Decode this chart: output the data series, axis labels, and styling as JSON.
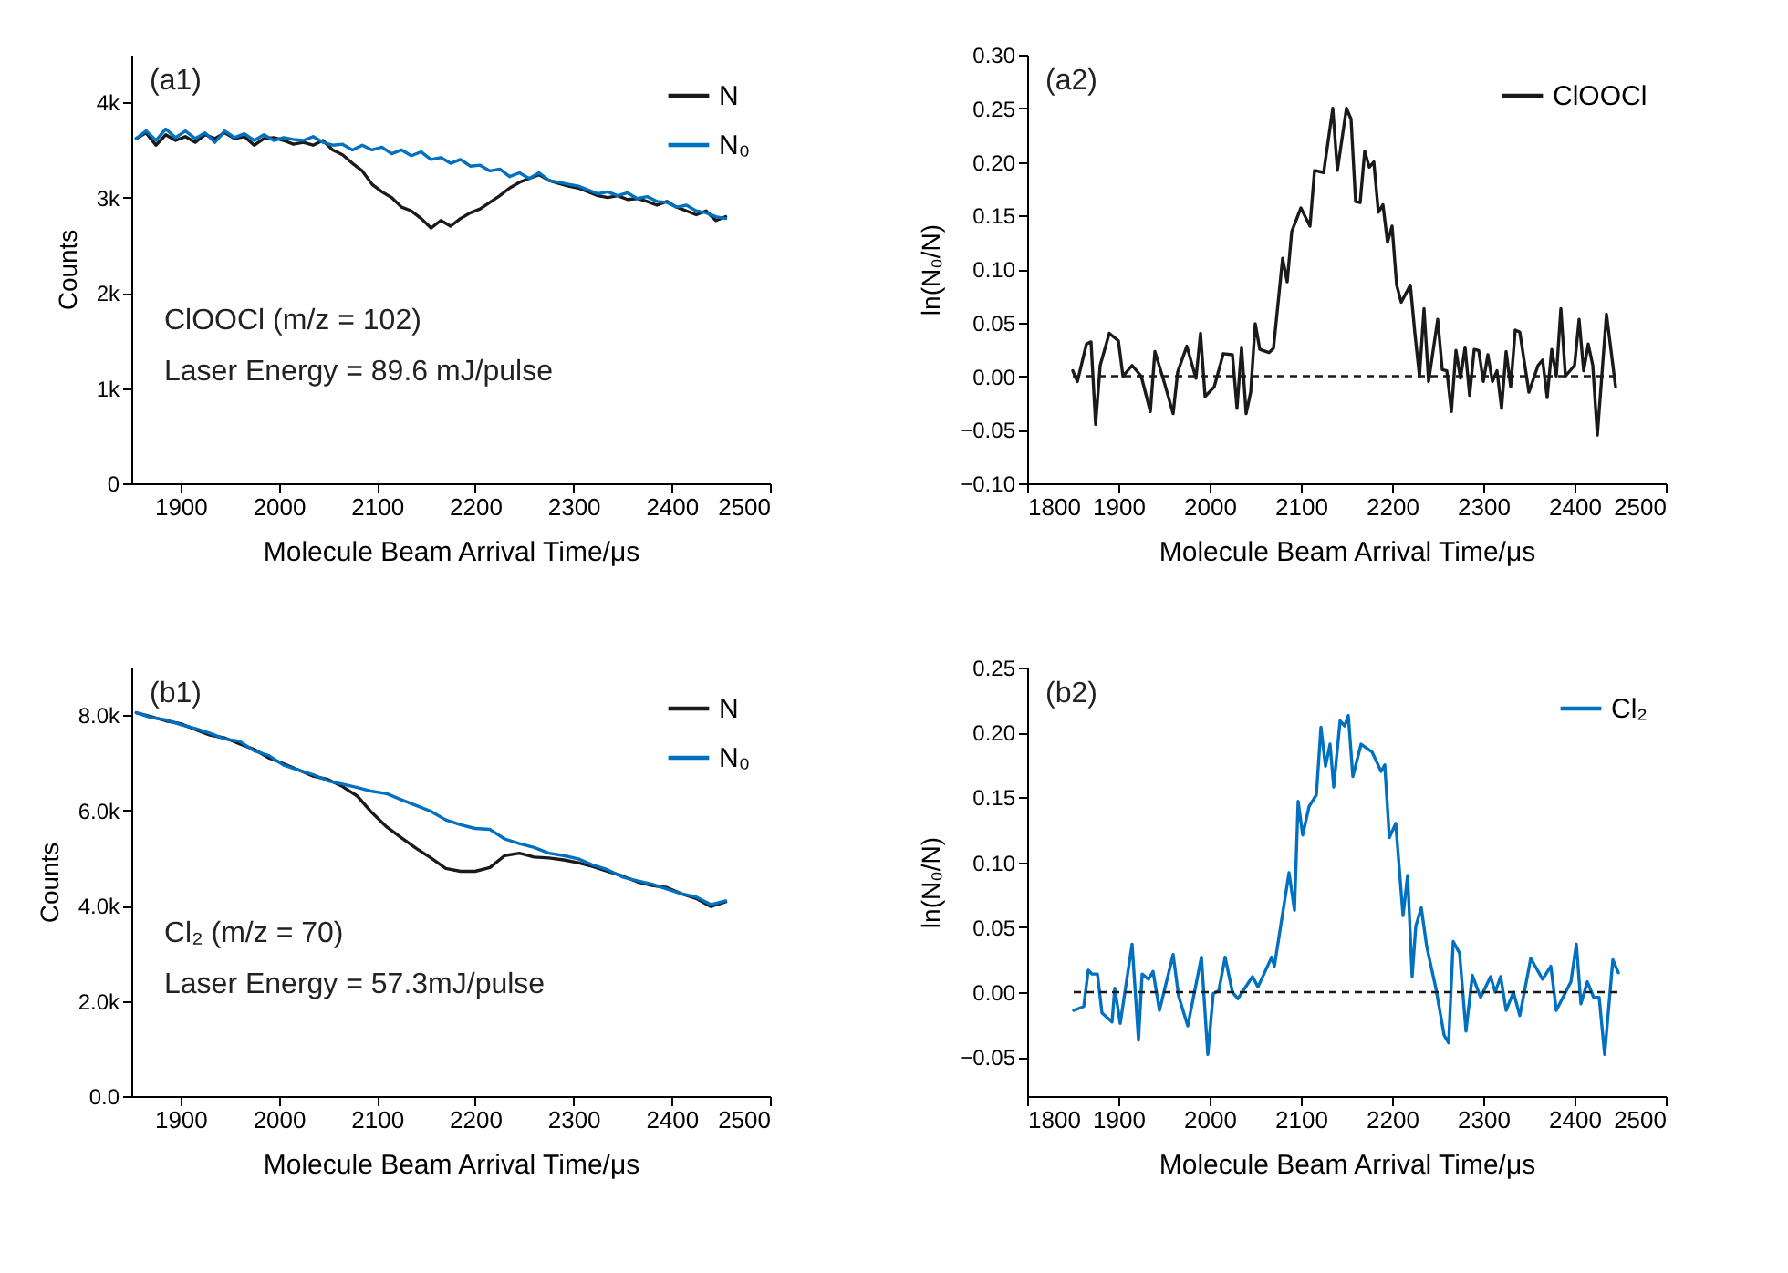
{
  "chart_data": [
    {
      "type": "line",
      "xlabel": "Molecule Beam Arrival Time/μs",
      "ylabel": "Counts",
      "xlim": [
        1850,
        2500
      ],
      "xticks": [
        1900,
        2000,
        2100,
        2200,
        2300,
        2400,
        2500
      ],
      "ylim": [
        0,
        4500
      ],
      "yticks": [
        {
          "value": 0,
          "label": "0"
        },
        {
          "value": 1000,
          "label": "1k"
        },
        {
          "value": 2000,
          "label": "2k"
        },
        {
          "value": 3000,
          "label": "3k"
        },
        {
          "value": 4000,
          "label": "4k"
        }
      ],
      "legend": "top right",
      "grid": false,
      "annotations": [
        "(a1)",
        "ClOOCl (m/z = 102)",
        "Laser Energy = 89.6 mJ/pulse"
      ],
      "x": [
        1855,
        1865,
        1875,
        1885,
        1895,
        1905,
        1915,
        1925,
        1935,
        1945,
        1955,
        1965,
        1975,
        1985,
        1995,
        2005,
        2015,
        2025,
        2035,
        2045,
        2055,
        2065,
        2075,
        2085,
        2095,
        2105,
        2115,
        2125,
        2135,
        2145,
        2155,
        2165,
        2175,
        2185,
        2195,
        2205,
        2215,
        2225,
        2235,
        2245,
        2255,
        2265,
        2275,
        2285,
        2295,
        2305,
        2315,
        2325,
        2335,
        2345,
        2355,
        2365,
        2375,
        2385,
        2395,
        2405,
        2415,
        2425,
        2435,
        2445,
        2455
      ],
      "series": [
        {
          "name": "N",
          "color": "#1a1a1a",
          "values": [
            3620,
            3680,
            3550,
            3660,
            3600,
            3640,
            3580,
            3660,
            3620,
            3680,
            3620,
            3640,
            3550,
            3620,
            3630,
            3600,
            3560,
            3580,
            3550,
            3600,
            3500,
            3450,
            3360,
            3280,
            3140,
            3060,
            3000,
            2900,
            2860,
            2780,
            2680,
            2760,
            2700,
            2780,
            2840,
            2880,
            2950,
            3020,
            3100,
            3160,
            3200,
            3240,
            3180,
            3150,
            3120,
            3100,
            3060,
            3020,
            3000,
            3020,
            2980,
            2990,
            2960,
            2920,
            2960,
            2900,
            2860,
            2820,
            2860,
            2760,
            2800
          ]
        },
        {
          "name": "N₀",
          "color": "#0070c0",
          "values": [
            3620,
            3700,
            3600,
            3720,
            3630,
            3700,
            3620,
            3680,
            3580,
            3700,
            3630,
            3670,
            3600,
            3660,
            3600,
            3630,
            3610,
            3600,
            3640,
            3580,
            3550,
            3560,
            3500,
            3550,
            3500,
            3530,
            3460,
            3500,
            3440,
            3480,
            3400,
            3420,
            3360,
            3400,
            3330,
            3340,
            3280,
            3300,
            3220,
            3260,
            3200,
            3260,
            3180,
            3160,
            3140,
            3120,
            3080,
            3040,
            3060,
            3020,
            3050,
            2990,
            3010,
            2960,
            2950,
            2900,
            2920,
            2860,
            2840,
            2800,
            2780
          ]
        }
      ]
    },
    {
      "type": "line",
      "xlabel": "Molecule Beam Arrival Time/μs",
      "ylabel": "ln(N₀/N)",
      "xlim": [
        1800,
        2500
      ],
      "xticks": [
        1800,
        1900,
        2000,
        2100,
        2200,
        2300,
        2400,
        2500
      ],
      "ylim": [
        -0.1,
        0.3
      ],
      "yticks": [
        {
          "value": -0.1,
          "label": "−0.10"
        },
        {
          "value": -0.05,
          "label": "−0.05"
        },
        {
          "value": 0,
          "label": "0.00"
        },
        {
          "value": 0.05,
          "label": "0.05"
        },
        {
          "value": 0.1,
          "label": "0.10"
        },
        {
          "value": 0.15,
          "label": "0.15"
        },
        {
          "value": 0.2,
          "label": "0.20"
        },
        {
          "value": 0.25,
          "label": "0.25"
        },
        {
          "value": 0.3,
          "label": "0.30"
        }
      ],
      "legend": "top right",
      "grid": false,
      "annotations": [
        "(a2)"
      ],
      "ref_lines": [
        {
          "axis": "y",
          "value": 0,
          "color": "#1a1a1a",
          "line_style": "dashed"
        }
      ],
      "series": [
        {
          "name": "ClOOCl",
          "color": "#1a1a1a",
          "x": [
            1850,
            1855,
            1865,
            1870,
            1875,
            1880,
            1890,
            1900,
            1905,
            1915,
            1925,
            1935,
            1940,
            1950,
            1960,
            1965,
            1975,
            1985,
            1990,
            1995,
            2005,
            2015,
            2025,
            2030,
            2035,
            2040,
            2045,
            2050,
            2055,
            2065,
            2070,
            2080,
            2085,
            2090,
            2100,
            2110,
            2115,
            2125,
            2135,
            2140,
            2150,
            2155,
            2160,
            2165,
            2170,
            2175,
            2180,
            2185,
            2190,
            2195,
            2200,
            2205,
            2210,
            2220,
            2225,
            2230,
            2235,
            2240,
            2250,
            2255,
            2260,
            2265,
            2270,
            2275,
            2280,
            2285,
            2290,
            2295,
            2300,
            2305,
            2310,
            2315,
            2320,
            2325,
            2330,
            2335,
            2340,
            2350,
            2360,
            2365,
            2370,
            2375,
            2380,
            2385,
            2390,
            2400,
            2405,
            2410,
            2415,
            2420,
            2425,
            2435,
            2445
          ],
          "values": [
            0.005,
            -0.005,
            0.03,
            0.032,
            -0.045,
            0.01,
            0.04,
            0.033,
            0.0,
            0.01,
            0.0,
            -0.033,
            0.023,
            -0.005,
            -0.035,
            0.004,
            0.028,
            -0.002,
            0.04,
            -0.019,
            -0.01,
            0.021,
            0.02,
            -0.03,
            0.027,
            -0.035,
            -0.015,
            0.049,
            0.025,
            0.022,
            0.026,
            0.11,
            0.088,
            0.135,
            0.157,
            0.14,
            0.192,
            0.19,
            0.25,
            0.192,
            0.25,
            0.24,
            0.163,
            0.162,
            0.21,
            0.195,
            0.2,
            0.153,
            0.16,
            0.125,
            0.14,
            0.085,
            0.069,
            0.085,
            0.04,
            0.0,
            0.063,
            -0.005,
            0.053,
            0.006,
            0.005,
            -0.033,
            0.024,
            -0.002,
            0.027,
            -0.018,
            0.025,
            0.024,
            -0.005,
            0.02,
            -0.005,
            0.005,
            -0.03,
            0.023,
            -0.01,
            0.043,
            0.041,
            -0.015,
            0.01,
            0.015,
            -0.02,
            0.025,
            0.0,
            0.063,
            0.0,
            0.01,
            0.053,
            0.005,
            0.03,
            0.01,
            -0.055,
            0.058,
            -0.01
          ]
        }
      ]
    },
    {
      "type": "line",
      "xlabel": "Molecule Beam Arrival Time/μs",
      "ylabel": "Counts",
      "xlim": [
        1850,
        2500
      ],
      "xticks": [
        1900,
        2000,
        2100,
        2200,
        2300,
        2400,
        2500
      ],
      "ylim": [
        0,
        9000
      ],
      "yticks": [
        {
          "value": 0,
          "label": "0.0"
        },
        {
          "value": 2000,
          "label": "2.0k"
        },
        {
          "value": 4000,
          "label": "4.0k"
        },
        {
          "value": 6000,
          "label": "6.0k"
        },
        {
          "value": 8000,
          "label": "8.0k"
        }
      ],
      "legend": "top right",
      "grid": false,
      "annotations": [
        "(b1)",
        "Cl₂ (m/z = 70)",
        "Laser Energy = 57.3mJ/pulse"
      ],
      "x": [
        1855,
        1870,
        1885,
        1900,
        1915,
        1930,
        1945,
        1960,
        1975,
        1990,
        2005,
        2020,
        2035,
        2050,
        2065,
        2080,
        2095,
        2110,
        2125,
        2140,
        2155,
        2170,
        2185,
        2200,
        2215,
        2230,
        2245,
        2260,
        2275,
        2290,
        2305,
        2320,
        2335,
        2350,
        2365,
        2380,
        2395,
        2410,
        2425,
        2440,
        2455
      ],
      "series": [
        {
          "name": "N",
          "color": "#1a1a1a",
          "values": [
            8050,
            7970,
            7880,
            7820,
            7700,
            7580,
            7520,
            7400,
            7280,
            7100,
            6980,
            6850,
            6720,
            6650,
            6500,
            6300,
            5950,
            5650,
            5420,
            5200,
            5000,
            4780,
            4720,
            4720,
            4800,
            5050,
            5100,
            5020,
            5000,
            4960,
            4900,
            4820,
            4720,
            4620,
            4500,
            4420,
            4380,
            4250,
            4150,
            3980,
            4080
          ]
        },
        {
          "name": "N₀",
          "color": "#0070c0",
          "values": [
            8050,
            7950,
            7900,
            7800,
            7720,
            7620,
            7500,
            7450,
            7250,
            7150,
            6950,
            6850,
            6750,
            6620,
            6550,
            6480,
            6400,
            6350,
            6220,
            6100,
            5980,
            5800,
            5700,
            5620,
            5600,
            5400,
            5300,
            5220,
            5100,
            5050,
            4980,
            4850,
            4750,
            4600,
            4520,
            4450,
            4350,
            4250,
            4180,
            4020,
            4100
          ]
        }
      ]
    },
    {
      "type": "line",
      "xlabel": "Molecule Beam Arrival Time/μs",
      "ylabel": "ln(N₀/N)",
      "xlim": [
        1800,
        2500
      ],
      "xticks": [
        1800,
        1900,
        2000,
        2100,
        2200,
        2300,
        2400,
        2500
      ],
      "ylim": [
        -0.08,
        0.25
      ],
      "yticks": [
        {
          "value": -0.05,
          "label": "−0.05"
        },
        {
          "value": 0,
          "label": "0.00"
        },
        {
          "value": 0.05,
          "label": "0.05"
        },
        {
          "value": 0.1,
          "label": "0.10"
        },
        {
          "value": 0.15,
          "label": "0.15"
        },
        {
          "value": 0.2,
          "label": "0.20"
        },
        {
          "value": 0.25,
          "label": "0.25"
        }
      ],
      "legend": "top right",
      "grid": false,
      "annotations": [
        "(b2)"
      ],
      "ref_lines": [
        {
          "axis": "y",
          "value": 0,
          "color": "#1a1a1a",
          "line_style": "dashed"
        }
      ],
      "series": [
        {
          "name": "Cl₂",
          "color": "#0070c0",
          "x": [
            1851,
            1862,
            1867,
            1871,
            1877,
            1882,
            1893,
            1896,
            1902,
            1915,
            1922,
            1926,
            1933,
            1938,
            1945,
            1960,
            1966,
            1976,
            1991,
            1998,
            2004,
            2010,
            2017,
            2025,
            2031,
            2047,
            2053,
            2068,
            2071,
            2087,
            2093,
            2097,
            2102,
            2109,
            2117,
            2122,
            2127,
            2132,
            2136,
            2143,
            2148,
            2152,
            2157,
            2166,
            2178,
            2188,
            2192,
            2197,
            2204,
            2212,
            2217,
            2222,
            2226,
            2232,
            2238,
            2248,
            2257,
            2262,
            2267,
            2274,
            2281,
            2288,
            2297,
            2308,
            2313,
            2319,
            2325,
            2333,
            2340,
            2352,
            2365,
            2374,
            2380,
            2396,
            2402,
            2407,
            2414,
            2421,
            2427,
            2433,
            2442,
            2448
          ],
          "values": [
            -0.014,
            -0.011,
            0.017,
            0.014,
            0.014,
            -0.016,
            -0.023,
            0.003,
            -0.024,
            0.037,
            -0.037,
            0.014,
            0.01,
            0.016,
            -0.014,
            0.029,
            -0.003,
            -0.026,
            0.027,
            -0.048,
            -0.001,
            0.001,
            0.027,
            0.0,
            -0.005,
            0.012,
            0.004,
            0.027,
            0.02,
            0.092,
            0.063,
            0.147,
            0.121,
            0.143,
            0.152,
            0.204,
            0.174,
            0.191,
            0.158,
            0.209,
            0.205,
            0.213,
            0.166,
            0.191,
            0.185,
            0.17,
            0.175,
            0.119,
            0.13,
            0.059,
            0.09,
            0.012,
            0.051,
            0.065,
            0.035,
            0.003,
            -0.033,
            -0.039,
            0.039,
            0.03,
            -0.03,
            0.013,
            -0.004,
            0.012,
            0.0,
            0.012,
            -0.014,
            0.0,
            -0.018,
            0.026,
            0.01,
            0.02,
            -0.014,
            0.008,
            0.037,
            -0.009,
            0.008,
            -0.004,
            -0.004,
            -0.048,
            0.025,
            0.015
          ]
        }
      ]
    }
  ]
}
